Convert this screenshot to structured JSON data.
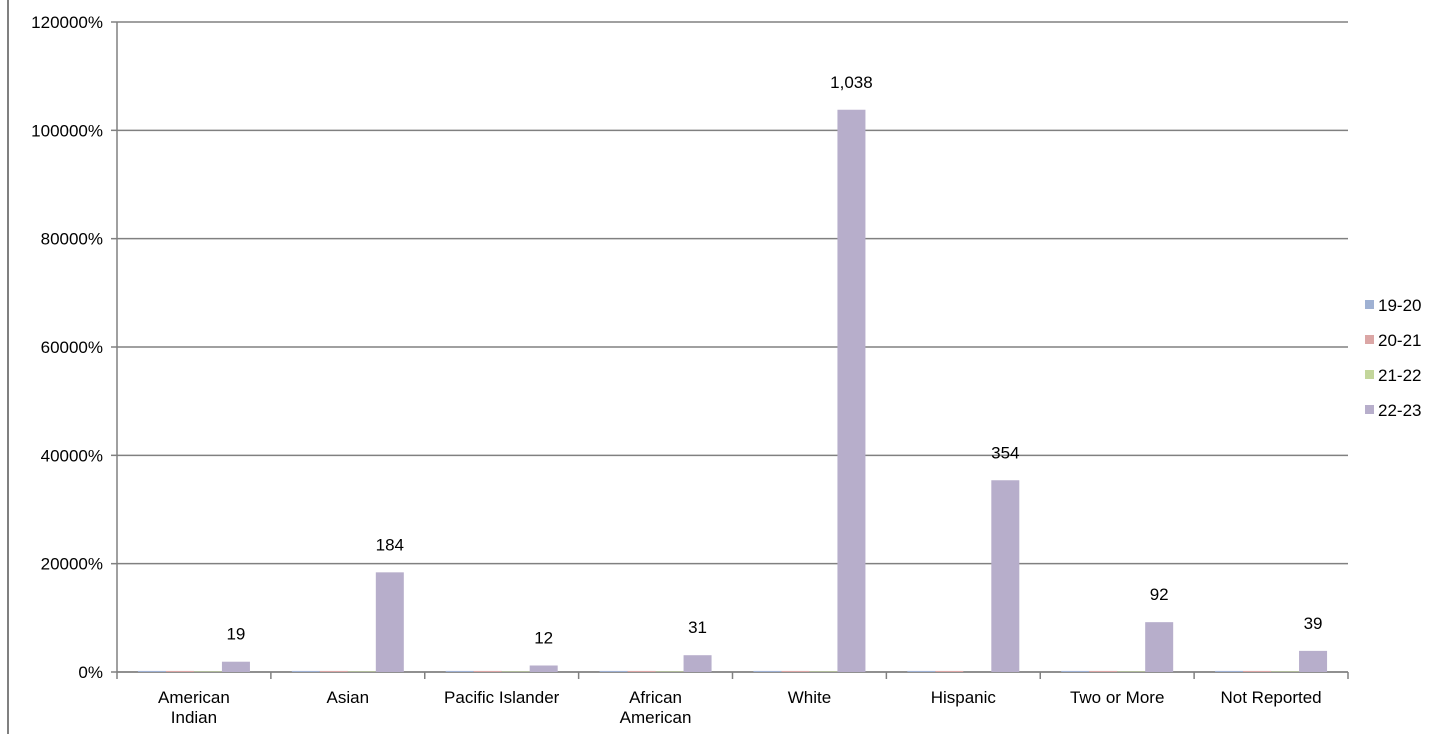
{
  "chart_data": {
    "type": "bar",
    "categories": [
      [
        "American",
        "Indian"
      ],
      [
        "Asian"
      ],
      [
        "Pacific Islander"
      ],
      [
        "African",
        "American"
      ],
      [
        "White"
      ],
      [
        "Hispanic"
      ],
      [
        "Two or More"
      ],
      [
        "Not Reported"
      ]
    ],
    "series": [
      {
        "name": "19-20",
        "color": "#9fb1d3",
        "values": [
          2,
          2,
          2,
          2,
          2,
          2,
          2,
          2
        ]
      },
      {
        "name": "20-21",
        "color": "#dba6a5",
        "values": [
          2,
          2,
          2,
          2,
          2,
          2,
          2,
          2
        ]
      },
      {
        "name": "21-22",
        "color": "#c3d69b",
        "values": [
          1,
          1,
          1,
          1,
          1,
          0,
          1,
          1
        ]
      },
      {
        "name": "22-23",
        "color": "#b7aecb",
        "values": [
          19,
          184,
          12,
          31,
          1038,
          354,
          92,
          39
        ]
      }
    ],
    "data_labels": [
      "19",
      "184",
      "12",
      "31",
      "1,038",
      "354",
      "92",
      "39"
    ],
    "y_ticks": [
      {
        "value": 0,
        "label": "0%"
      },
      {
        "value": 200,
        "label": "20000%"
      },
      {
        "value": 400,
        "label": "40000%"
      },
      {
        "value": 600,
        "label": "60000%"
      },
      {
        "value": 800,
        "label": "80000%"
      },
      {
        "value": 1000,
        "label": "100000%"
      },
      {
        "value": 1200,
        "label": "120000%"
      }
    ],
    "ylim": [
      0,
      1200
    ],
    "grid": true,
    "legend_position": "right"
  }
}
